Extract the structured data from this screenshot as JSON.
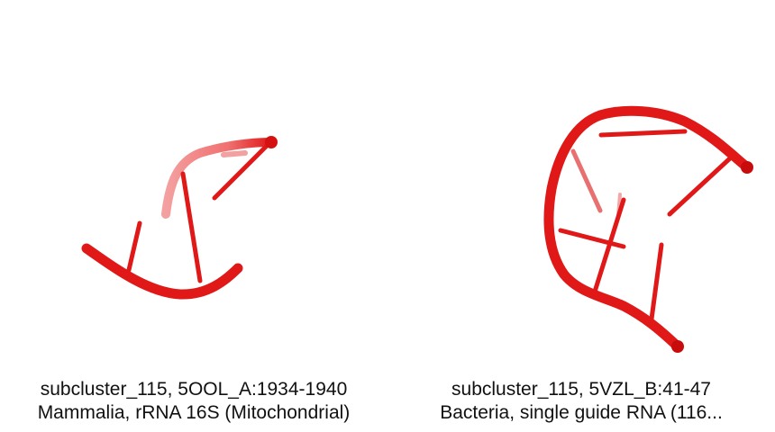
{
  "colors": {
    "background": "#ffffff",
    "rna": "#e01818",
    "rna_light": "#f07070",
    "rna_dark": "#b00808",
    "text": "#111111"
  },
  "panels": [
    {
      "caption_line1": "subcluster_115, 5OOL_A:1934-1940",
      "caption_line2": "Mammalia, rRNA 16S (Mitochondrial)",
      "image": "rna-cartoon-structure"
    },
    {
      "caption_line1": "subcluster_115, 5VZL_B:41-47",
      "caption_line2": "Bacteria, single guide RNA (116...",
      "image": "rna-cartoon-structure"
    }
  ]
}
